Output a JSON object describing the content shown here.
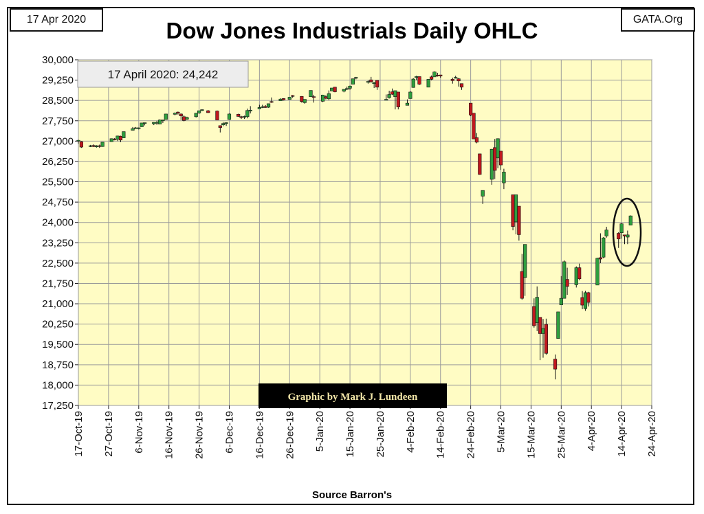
{
  "header": {
    "date_label": "17 Apr 2020",
    "site_label": "GATA.Org",
    "title": "Dow Jones Industrials Daily OHLC"
  },
  "footer": {
    "source": "Source Barron's"
  },
  "colors": {
    "plot_bg": "#FFFCC4",
    "up_candle": "#2E9E3E",
    "down_candle": "#C0181F",
    "grid": "#9A9A9A"
  },
  "chart_data": {
    "type": "candlestick",
    "title": "Dow Jones Industrials Daily OHLC",
    "annotation": "17 April 2020: 24,242",
    "credit": "Graphic by Mark J. Lundeen",
    "highlight": "ellipse around 9-Apr-20 to 17-Apr-20",
    "grid": true,
    "ylim": [
      17250,
      30000
    ],
    "yticks": [
      17250,
      18000,
      18750,
      19500,
      20250,
      21000,
      21750,
      22500,
      23250,
      24000,
      24750,
      25500,
      26250,
      27000,
      27750,
      28500,
      29250,
      30000
    ],
    "ytick_labels": [
      "17,250",
      "18,000",
      "18,750",
      "19,500",
      "20,250",
      "21,000",
      "21,750",
      "22,500",
      "23,250",
      "24,000",
      "24,750",
      "25,500",
      "26,250",
      "27,000",
      "27,750",
      "28,500",
      "29,250",
      "30,000"
    ],
    "xlim": [
      "2019-10-17",
      "2020-04-24"
    ],
    "xtick_labels": [
      "17-Oct-19",
      "27-Oct-19",
      "6-Nov-19",
      "16-Nov-19",
      "26-Nov-19",
      "6-Dec-19",
      "16-Dec-19",
      "26-Dec-19",
      "5-Jan-20",
      "15-Jan-20",
      "25-Jan-20",
      "4-Feb-20",
      "14-Feb-20",
      "24-Feb-20",
      "5-Mar-20",
      "15-Mar-20",
      "25-Mar-20",
      "4-Apr-20",
      "14-Apr-20",
      "24-Apr-20"
    ],
    "ohlc": [
      {
        "date": "2019-10-17",
        "o": 27000,
        "h": 27050,
        "l": 26900,
        "c": 27030
      },
      {
        "date": "2019-10-18",
        "o": 26980,
        "h": 27000,
        "l": 26750,
        "c": 26780
      },
      {
        "date": "2019-10-21",
        "o": 26800,
        "h": 26860,
        "l": 26780,
        "c": 26830
      },
      {
        "date": "2019-10-22",
        "o": 26840,
        "h": 26880,
        "l": 26780,
        "c": 26800
      },
      {
        "date": "2019-10-23",
        "o": 26790,
        "h": 26850,
        "l": 26760,
        "c": 26830
      },
      {
        "date": "2019-10-24",
        "o": 26830,
        "h": 26870,
        "l": 26750,
        "c": 26800
      },
      {
        "date": "2019-10-25",
        "o": 26800,
        "h": 26960,
        "l": 26790,
        "c": 26960
      },
      {
        "date": "2019-10-28",
        "o": 26980,
        "h": 27100,
        "l": 26970,
        "c": 27090
      },
      {
        "date": "2019-10-29",
        "o": 27080,
        "h": 27110,
        "l": 27030,
        "c": 27070
      },
      {
        "date": "2019-10-30",
        "o": 27070,
        "h": 27200,
        "l": 27000,
        "c": 27190
      },
      {
        "date": "2019-10-31",
        "o": 27180,
        "h": 27200,
        "l": 26960,
        "c": 27040
      },
      {
        "date": "2019-11-01",
        "o": 27120,
        "h": 27350,
        "l": 27110,
        "c": 27350
      },
      {
        "date": "2019-11-04",
        "o": 27400,
        "h": 27520,
        "l": 27400,
        "c": 27460
      },
      {
        "date": "2019-11-05",
        "o": 27470,
        "h": 27520,
        "l": 27460,
        "c": 27490
      },
      {
        "date": "2019-11-06",
        "o": 27480,
        "h": 27500,
        "l": 27430,
        "c": 27490
      },
      {
        "date": "2019-11-07",
        "o": 27530,
        "h": 27670,
        "l": 27520,
        "c": 27670
      },
      {
        "date": "2019-11-08",
        "o": 27650,
        "h": 27680,
        "l": 27580,
        "c": 27680
      },
      {
        "date": "2019-11-11",
        "o": 27640,
        "h": 27700,
        "l": 27590,
        "c": 27690
      },
      {
        "date": "2019-11-12",
        "o": 27690,
        "h": 27750,
        "l": 27600,
        "c": 27690
      },
      {
        "date": "2019-11-13",
        "o": 27630,
        "h": 27800,
        "l": 27620,
        "c": 27780
      },
      {
        "date": "2019-11-14",
        "o": 27760,
        "h": 27790,
        "l": 27670,
        "c": 27780
      },
      {
        "date": "2019-11-15",
        "o": 27800,
        "h": 28010,
        "l": 27800,
        "c": 28000
      },
      {
        "date": "2019-11-18",
        "o": 27990,
        "h": 28060,
        "l": 27950,
        "c": 28030
      },
      {
        "date": "2019-11-19",
        "o": 28070,
        "h": 28090,
        "l": 27980,
        "c": 28030
      },
      {
        "date": "2019-11-20",
        "o": 28000,
        "h": 28020,
        "l": 27780,
        "c": 27930
      },
      {
        "date": "2019-11-21",
        "o": 27900,
        "h": 27950,
        "l": 27730,
        "c": 27760
      },
      {
        "date": "2019-11-22",
        "o": 27810,
        "h": 27900,
        "l": 27790,
        "c": 27870
      },
      {
        "date": "2019-11-25",
        "o": 27900,
        "h": 28040,
        "l": 27870,
        "c": 28030
      },
      {
        "date": "2019-11-26",
        "o": 28040,
        "h": 28130,
        "l": 28000,
        "c": 28120
      },
      {
        "date": "2019-11-27",
        "o": 28130,
        "h": 28170,
        "l": 28110,
        "c": 28160
      },
      {
        "date": "2019-11-29",
        "o": 28120,
        "h": 28150,
        "l": 28040,
        "c": 28050
      },
      {
        "date": "2019-12-02",
        "o": 28110,
        "h": 28130,
        "l": 27780,
        "c": 27780
      },
      {
        "date": "2019-12-03",
        "o": 27570,
        "h": 27580,
        "l": 27320,
        "c": 27500
      },
      {
        "date": "2019-12-04",
        "o": 27600,
        "h": 27700,
        "l": 27550,
        "c": 27650
      },
      {
        "date": "2019-12-05",
        "o": 27680,
        "h": 27690,
        "l": 27560,
        "c": 27680
      },
      {
        "date": "2019-12-06",
        "o": 27800,
        "h": 28020,
        "l": 27800,
        "c": 28000
      },
      {
        "date": "2019-12-09",
        "o": 27990,
        "h": 28010,
        "l": 27900,
        "c": 27910
      },
      {
        "date": "2019-12-10",
        "o": 27900,
        "h": 27930,
        "l": 27820,
        "c": 27880
      },
      {
        "date": "2019-12-11",
        "o": 27880,
        "h": 27940,
        "l": 27820,
        "c": 27910
      },
      {
        "date": "2019-12-12",
        "o": 27900,
        "h": 28200,
        "l": 27840,
        "c": 28130
      },
      {
        "date": "2019-12-13",
        "o": 28130,
        "h": 28290,
        "l": 28020,
        "c": 28140
      },
      {
        "date": "2019-12-16",
        "o": 28190,
        "h": 28340,
        "l": 28190,
        "c": 28240
      },
      {
        "date": "2019-12-17",
        "o": 28250,
        "h": 28340,
        "l": 28220,
        "c": 28270
      },
      {
        "date": "2019-12-18",
        "o": 28280,
        "h": 28330,
        "l": 28230,
        "c": 28240
      },
      {
        "date": "2019-12-19",
        "o": 28250,
        "h": 28380,
        "l": 28230,
        "c": 28380
      },
      {
        "date": "2019-12-20",
        "o": 28460,
        "h": 28610,
        "l": 28410,
        "c": 28450
      },
      {
        "date": "2019-12-23",
        "o": 28490,
        "h": 28580,
        "l": 28490,
        "c": 28550
      },
      {
        "date": "2019-12-24",
        "o": 28570,
        "h": 28580,
        "l": 28500,
        "c": 28520
      },
      {
        "date": "2019-12-26",
        "o": 28540,
        "h": 28630,
        "l": 28540,
        "c": 28620
      },
      {
        "date": "2019-12-27",
        "o": 28680,
        "h": 28700,
        "l": 28600,
        "c": 28650
      },
      {
        "date": "2019-12-30",
        "o": 28650,
        "h": 28660,
        "l": 28420,
        "c": 28460
      },
      {
        "date": "2019-12-31",
        "o": 28420,
        "h": 28540,
        "l": 28380,
        "c": 28540
      },
      {
        "date": "2020-01-02",
        "o": 28640,
        "h": 28870,
        "l": 28640,
        "c": 28870
      },
      {
        "date": "2020-01-03",
        "o": 28640,
        "h": 28710,
        "l": 28420,
        "c": 28630
      },
      {
        "date": "2020-01-06",
        "o": 28470,
        "h": 28710,
        "l": 28440,
        "c": 28700
      },
      {
        "date": "2020-01-07",
        "o": 28640,
        "h": 28690,
        "l": 28540,
        "c": 28580
      },
      {
        "date": "2020-01-08",
        "o": 28560,
        "h": 28870,
        "l": 28510,
        "c": 28750
      },
      {
        "date": "2020-01-09",
        "o": 28850,
        "h": 28960,
        "l": 28850,
        "c": 28960
      },
      {
        "date": "2020-01-10",
        "o": 28990,
        "h": 29000,
        "l": 28800,
        "c": 28820
      },
      {
        "date": "2020-01-13",
        "o": 28840,
        "h": 28910,
        "l": 28800,
        "c": 28910
      },
      {
        "date": "2020-01-14",
        "o": 28930,
        "h": 29010,
        "l": 28880,
        "c": 28940
      },
      {
        "date": "2020-01-15",
        "o": 28950,
        "h": 29050,
        "l": 28890,
        "c": 29030
      },
      {
        "date": "2020-01-16",
        "o": 29100,
        "h": 29300,
        "l": 29100,
        "c": 29300
      },
      {
        "date": "2020-01-17",
        "o": 29330,
        "h": 29370,
        "l": 29280,
        "c": 29350
      },
      {
        "date": "2020-01-21",
        "o": 29200,
        "h": 29250,
        "l": 29120,
        "c": 29200
      },
      {
        "date": "2020-01-22",
        "o": 29260,
        "h": 29370,
        "l": 29150,
        "c": 29190
      },
      {
        "date": "2020-01-23",
        "o": 29120,
        "h": 29180,
        "l": 28960,
        "c": 29160
      },
      {
        "date": "2020-01-24",
        "o": 29240,
        "h": 29240,
        "l": 28890,
        "c": 28990
      },
      {
        "date": "2020-01-27",
        "o": 28540,
        "h": 28720,
        "l": 28540,
        "c": 28540
      },
      {
        "date": "2020-01-28",
        "o": 28600,
        "h": 28860,
        "l": 28570,
        "c": 28720
      },
      {
        "date": "2020-01-29",
        "o": 28820,
        "h": 28940,
        "l": 28700,
        "c": 28730
      },
      {
        "date": "2020-01-30",
        "o": 28640,
        "h": 28860,
        "l": 28170,
        "c": 28860
      },
      {
        "date": "2020-01-31",
        "o": 28810,
        "h": 28810,
        "l": 28170,
        "c": 28260
      },
      {
        "date": "2020-02-03",
        "o": 28320,
        "h": 28540,
        "l": 28320,
        "c": 28400
      },
      {
        "date": "2020-02-04",
        "o": 28570,
        "h": 28850,
        "l": 28570,
        "c": 28810
      },
      {
        "date": "2020-02-05",
        "o": 28980,
        "h": 29320,
        "l": 28970,
        "c": 29290
      },
      {
        "date": "2020-02-06",
        "o": 29370,
        "h": 29410,
        "l": 29250,
        "c": 29380
      },
      {
        "date": "2020-02-07",
        "o": 29380,
        "h": 29380,
        "l": 29070,
        "c": 29100
      },
      {
        "date": "2020-02-10",
        "o": 28990,
        "h": 29280,
        "l": 28990,
        "c": 29280
      },
      {
        "date": "2020-02-11",
        "o": 29370,
        "h": 29420,
        "l": 29240,
        "c": 29280
      },
      {
        "date": "2020-02-12",
        "o": 29370,
        "h": 29570,
        "l": 29370,
        "c": 29550
      },
      {
        "date": "2020-02-13",
        "o": 29430,
        "h": 29520,
        "l": 29380,
        "c": 29420
      },
      {
        "date": "2020-02-14",
        "o": 29440,
        "h": 29440,
        "l": 29340,
        "c": 29400
      },
      {
        "date": "2020-02-18",
        "o": 29280,
        "h": 29340,
        "l": 29120,
        "c": 29230
      },
      {
        "date": "2020-02-19",
        "o": 29330,
        "h": 29410,
        "l": 29310,
        "c": 29350
      },
      {
        "date": "2020-02-20",
        "o": 29300,
        "h": 29330,
        "l": 29010,
        "c": 29220
      },
      {
        "date": "2020-02-21",
        "o": 29120,
        "h": 29120,
        "l": 28890,
        "c": 28990
      },
      {
        "date": "2020-02-24",
        "o": 28400,
        "h": 28400,
        "l": 27920,
        "c": 27960
      },
      {
        "date": "2020-02-25",
        "o": 28030,
        "h": 28030,
        "l": 27080,
        "c": 27080
      },
      {
        "date": "2020-02-26",
        "o": 27130,
        "h": 27300,
        "l": 26920,
        "c": 26960
      },
      {
        "date": "2020-02-27",
        "o": 26530,
        "h": 26530,
        "l": 25760,
        "c": 25770
      },
      {
        "date": "2020-02-28",
        "o": 24970,
        "h": 25180,
        "l": 24680,
        "c": 25180
      },
      {
        "date": "2020-03-02",
        "o": 25590,
        "h": 26710,
        "l": 25390,
        "c": 26700
      },
      {
        "date": "2020-03-03",
        "o": 26760,
        "h": 27080,
        "l": 25600,
        "c": 25920
      },
      {
        "date": "2020-03-04",
        "o": 26380,
        "h": 27100,
        "l": 26000,
        "c": 27090
      },
      {
        "date": "2020-03-05",
        "o": 26630,
        "h": 26630,
        "l": 25940,
        "c": 26120
      },
      {
        "date": "2020-03-06",
        "o": 25460,
        "h": 25980,
        "l": 25230,
        "c": 25860
      },
      {
        "date": "2020-03-09",
        "o": 25020,
        "h": 25020,
        "l": 23710,
        "c": 23850
      },
      {
        "date": "2020-03-10",
        "o": 24020,
        "h": 25020,
        "l": 23560,
        "c": 25020
      },
      {
        "date": "2020-03-11",
        "o": 24600,
        "h": 24600,
        "l": 23330,
        "c": 23550
      },
      {
        "date": "2020-03-12",
        "o": 22190,
        "h": 22840,
        "l": 21150,
        "c": 21200
      },
      {
        "date": "2020-03-13",
        "o": 21970,
        "h": 23190,
        "l": 21290,
        "c": 23190
      },
      {
        "date": "2020-03-16",
        "o": 20900,
        "h": 21200,
        "l": 20120,
        "c": 20190
      },
      {
        "date": "2020-03-17",
        "o": 20300,
        "h": 21640,
        "l": 19990,
        "c": 21240
      },
      {
        "date": "2020-03-18",
        "o": 20500,
        "h": 20500,
        "l": 18920,
        "c": 19900
      },
      {
        "date": "2020-03-19",
        "o": 19900,
        "h": 20440,
        "l": 19010,
        "c": 20090
      },
      {
        "date": "2020-03-20",
        "o": 20240,
        "h": 20450,
        "l": 19120,
        "c": 19170
      },
      {
        "date": "2020-03-23",
        "o": 18960,
        "h": 19130,
        "l": 18210,
        "c": 18590
      },
      {
        "date": "2020-03-24",
        "o": 19720,
        "h": 20700,
        "l": 19720,
        "c": 20700
      },
      {
        "date": "2020-03-25",
        "o": 20960,
        "h": 22020,
        "l": 20960,
        "c": 21200
      },
      {
        "date": "2020-03-26",
        "o": 21200,
        "h": 22600,
        "l": 21200,
        "c": 22550
      },
      {
        "date": "2020-03-27",
        "o": 21900,
        "h": 22330,
        "l": 21330,
        "c": 21640
      },
      {
        "date": "2020-03-30",
        "o": 21700,
        "h": 22380,
        "l": 21600,
        "c": 22330
      },
      {
        "date": "2020-03-31",
        "o": 22330,
        "h": 22480,
        "l": 21870,
        "c": 21920
      },
      {
        "date": "2020-04-01",
        "o": 21230,
        "h": 21470,
        "l": 20800,
        "c": 20950
      },
      {
        "date": "2020-04-02",
        "o": 20820,
        "h": 21480,
        "l": 20740,
        "c": 21410
      },
      {
        "date": "2020-04-03",
        "o": 21410,
        "h": 21440,
        "l": 20900,
        "c": 21050
      },
      {
        "date": "2020-04-06",
        "o": 21690,
        "h": 22700,
        "l": 21690,
        "c": 22680
      },
      {
        "date": "2020-04-07",
        "o": 22700,
        "h": 23600,
        "l": 22500,
        "c": 22650
      },
      {
        "date": "2020-04-08",
        "o": 22720,
        "h": 23460,
        "l": 22680,
        "c": 23430
      },
      {
        "date": "2020-04-09",
        "o": 23500,
        "h": 23840,
        "l": 23440,
        "c": 23720
      },
      {
        "date": "2020-04-13",
        "o": 23600,
        "h": 23640,
        "l": 23060,
        "c": 23390
      },
      {
        "date": "2020-04-14",
        "o": 23620,
        "h": 23980,
        "l": 23400,
        "c": 23950
      },
      {
        "date": "2020-04-15",
        "o": 23540,
        "h": 23540,
        "l": 23200,
        "c": 23500
      },
      {
        "date": "2020-04-16",
        "o": 23460,
        "h": 23700,
        "l": 23200,
        "c": 23540
      },
      {
        "date": "2020-04-17",
        "o": 23900,
        "h": 24260,
        "l": 23900,
        "c": 24242
      }
    ]
  }
}
